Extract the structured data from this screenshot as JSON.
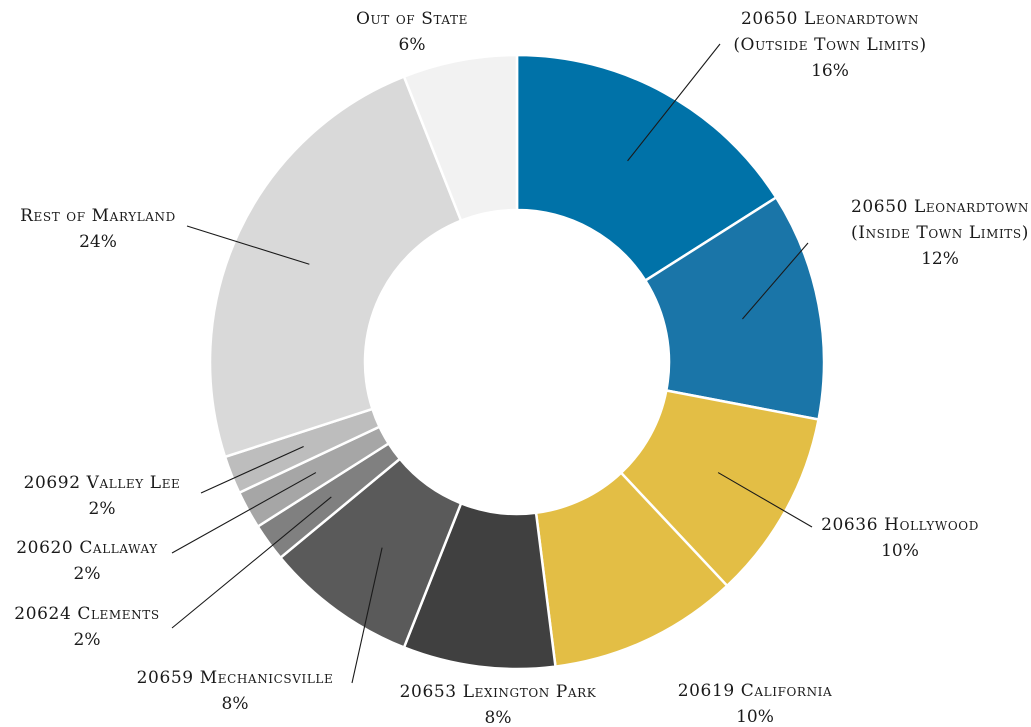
{
  "chart_data": {
    "type": "pie",
    "variant": "donut",
    "title": "",
    "slices": [
      {
        "label": [
          "20650 Leonardtown",
          "(Outside Town Limits)"
        ],
        "value": 16,
        "value_label": "16%",
        "color": "#0072A8"
      },
      {
        "label": [
          "20650 Leonardtown",
          "(Inside Town Limits)"
        ],
        "value": 12,
        "value_label": "12%",
        "color": "#1A75A8"
      },
      {
        "label": [
          "20636 Hollywood"
        ],
        "value": 10,
        "value_label": "10%",
        "color": "#E3BE45"
      },
      {
        "label": [
          "20619 California"
        ],
        "value": 10,
        "value_label": "10%",
        "color": "#E3BE45"
      },
      {
        "label": [
          "20653 Lexington Park"
        ],
        "value": 8,
        "value_label": "8%",
        "color": "#404040"
      },
      {
        "label": [
          "20659 Mechanicsville"
        ],
        "value": 8,
        "value_label": "8%",
        "color": "#5A5A5A"
      },
      {
        "label": [
          "20624 Clements"
        ],
        "value": 2,
        "value_label": "2%",
        "color": "#808080"
      },
      {
        "label": [
          "20620 Callaway"
        ],
        "value": 2,
        "value_label": "2%",
        "color": "#A6A6A6"
      },
      {
        "label": [
          "20692 Valley Lee"
        ],
        "value": 2,
        "value_label": "2%",
        "color": "#BDBDBD"
      },
      {
        "label": [
          "Rest of Maryland"
        ],
        "value": 24,
        "value_label": "24%",
        "color": "#D9D9D9"
      },
      {
        "label": [
          "Out of State"
        ],
        "value": 6,
        "value_label": "6%",
        "color": "#F2F2F2"
      }
    ]
  }
}
